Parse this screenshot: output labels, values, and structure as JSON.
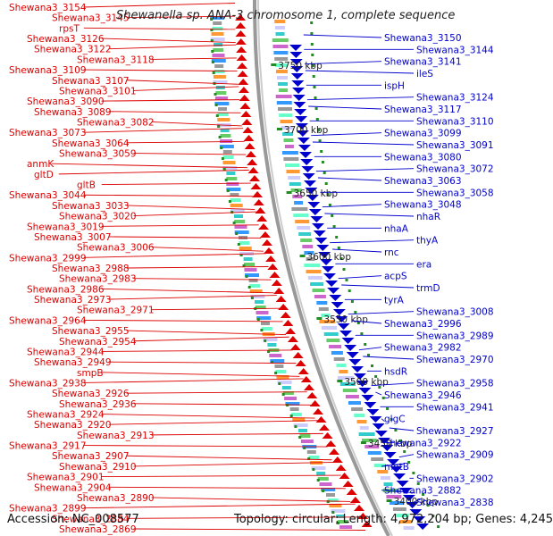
{
  "title": "Shewanella sp. ANA-3 chromosome 1, complete sequence",
  "footer": {
    "accession": "Accession: NC_008577",
    "summary": "Topology: circular; Length: 4,972,204 bp; Genes: 4,245"
  },
  "colors": {
    "forward_strand": "#dd0000",
    "reverse_strand": "#0000cc",
    "backbone": "#999999",
    "tick": "#228b22"
  },
  "kbp_ticks": [
    "3750 kbp",
    "3700 kbp",
    "3650 kbp",
    "3600 kbp",
    "3550 kbp",
    "3500 kbp",
    "3450 kbp",
    "3400 kbp"
  ],
  "left_labels": [
    "Shewana3_3154",
    "Shewana3_3145",
    "rpsT",
    "Shewana3_3126",
    "Shewana3_3122",
    "Shewana3_3118",
    "Shewana3_3109",
    "Shewana3_3107",
    "Shewana3_3101",
    "Shewana3_3090",
    "Shewana3_3089",
    "Shewana3_3082",
    "Shewana3_3073",
    "Shewana3_3064",
    "Shewana3_3059",
    "anmK",
    "gltD",
    "gltB",
    "Shewana3_3044",
    "Shewana3_3033",
    "Shewana3_3020",
    "Shewana3_3019",
    "Shewana3_3007",
    "Shewana3_3006",
    "Shewana3_2999",
    "Shewana3_2988",
    "Shewana3_2983",
    "Shewana3_2986",
    "Shewana3_2973",
    "Shewana3_2971",
    "Shewana3_2964",
    "Shewana3_2955",
    "Shewana3_2954",
    "Shewana3_2944",
    "Shewana3_2949",
    "smpB",
    "Shewana3_2938",
    "Shewana3_2926",
    "Shewana3_2936",
    "Shewana3_2924",
    "Shewana3_2920",
    "Shewana3_2913",
    "Shewana3_2917",
    "Shewana3_2907",
    "Shewana3_2910",
    "Shewana3_2901",
    "Shewana3_2904",
    "Shewana3_2890",
    "Shewana3_2899",
    "Shewana3_2884",
    "Shewana3_2869"
  ],
  "right_labels": [
    "Shewana3_3150",
    "Shewana3_3144",
    "Shewana3_3141",
    "ileS",
    "ispH",
    "Shewana3_3124",
    "Shewana3_3117",
    "Shewana3_3110",
    "Shewana3_3099",
    "Shewana3_3091",
    "Shewana3_3080",
    "Shewana3_3072",
    "Shewana3_3063",
    "Shewana3_3058",
    "Shewana3_3048",
    "nhaR",
    "nhaA",
    "thyA",
    "rnc",
    "era",
    "acpS",
    "trmD",
    "tyrA",
    "Shewana3_3008",
    "Shewana3_2996",
    "Shewana3_2989",
    "Shewana3_2982",
    "Shewana3_2970",
    "hsdR",
    "Shewana3_2958",
    "Shewana3_2946",
    "Shewana3_2941",
    "glgC",
    "Shewana3_2927",
    "Shewana3_2922",
    "Shewana3_2909",
    "motB",
    "Shewana3_2902",
    "Shewana3_2882",
    "Shewana3_2838"
  ]
}
